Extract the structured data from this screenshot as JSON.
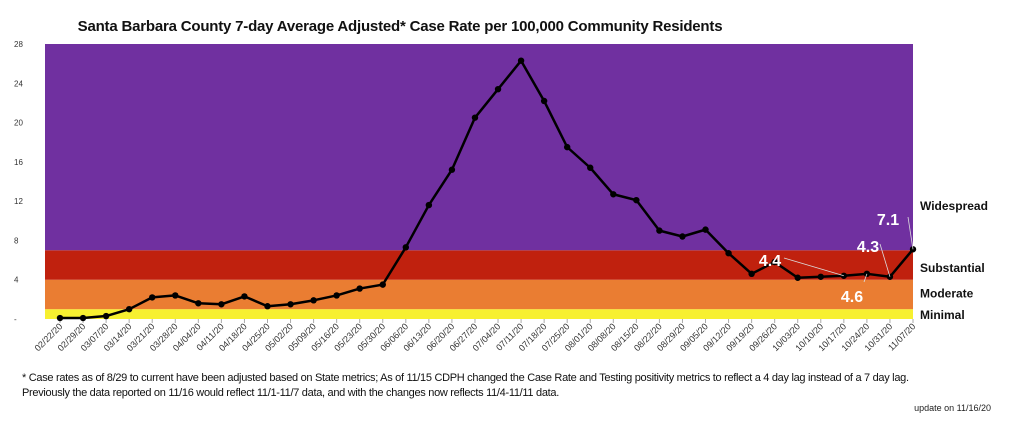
{
  "chart_data": {
    "type": "line",
    "title": "Santa Barbara County 7-day Average Adjusted* Case Rate per 100,000 Community Residents",
    "xlabel": "",
    "ylabel": "",
    "ylim": [
      0,
      28
    ],
    "yticks": [
      {
        "value": 0,
        "label": "-"
      },
      {
        "value": 4,
        "label": "4"
      },
      {
        "value": 8,
        "label": "8"
      },
      {
        "value": 12,
        "label": "12"
      },
      {
        "value": 16,
        "label": "16"
      },
      {
        "value": 20,
        "label": "20"
      },
      {
        "value": 24,
        "label": "24"
      },
      {
        "value": 28,
        "label": "28"
      }
    ],
    "categories": [
      "02/22/20",
      "02/29/20",
      "03/07/20",
      "03/14/20",
      "03/21/20",
      "03/28/20",
      "04/04/20",
      "04/11/20",
      "04/18/20",
      "04/25/20",
      "05/02/20",
      "05/09/20",
      "05/16/20",
      "05/23/20",
      "05/30/20",
      "06/06/20",
      "06/13/20",
      "06/20/20",
      "06/27/20",
      "07/04/20",
      "07/11/20",
      "07/18/20",
      "07/25/20",
      "08/01/20",
      "08/08/20",
      "08/15/20",
      "08/22/20",
      "08/29/20",
      "09/05/20",
      "09/12/20",
      "09/19/20",
      "09/26/20",
      "10/03/20",
      "10/10/20",
      "10/17/20",
      "10/24/20",
      "10/31/20",
      "11/07/20"
    ],
    "series": [
      {
        "name": "7-day Average Adjusted Case Rate",
        "color": "#000000",
        "values": [
          0.1,
          0.1,
          0.3,
          1.0,
          2.2,
          2.4,
          1.6,
          1.5,
          2.3,
          1.3,
          1.5,
          1.9,
          2.4,
          3.1,
          3.5,
          7.3,
          11.6,
          15.2,
          20.5,
          23.4,
          26.3,
          22.2,
          17.5,
          15.4,
          12.7,
          12.1,
          9.0,
          8.4,
          9.1,
          6.7,
          4.6,
          5.8,
          4.2,
          4.3,
          4.4,
          4.6,
          4.3,
          7.1
        ]
      }
    ],
    "bands": [
      {
        "label": "Minimal",
        "from": 0,
        "to": 1,
        "color": "#f7f030"
      },
      {
        "label": "Moderate",
        "from": 1,
        "to": 4,
        "color": "#ea7d32"
      },
      {
        "label": "Substantial",
        "from": 4,
        "to": 7,
        "color": "#c0210e"
      },
      {
        "label": "Widespread",
        "from": 7,
        "to": 28,
        "color": "#7030a0"
      }
    ],
    "annotations": [
      {
        "text": "4.4",
        "index": 34
      },
      {
        "text": "4.6",
        "index": 35
      },
      {
        "text": "4.3",
        "index": 36
      },
      {
        "text": "7.1",
        "index": 37
      }
    ],
    "grid": false,
    "legend": "right"
  },
  "footnote": {
    "line1": "* Case rates as of 8/29 to current have been adjusted based on State metrics; As of 11/15 CDPH changed the Case Rate and Testing positivity metrics to reflect a 4 day lag instead of a 7 day lag.",
    "line2": "Previously the data reported on 11/16 would reflect 11/1-11/7 data, and with the changes now reflects 11/4-11/11 data."
  },
  "update": "update on 11/16/20"
}
